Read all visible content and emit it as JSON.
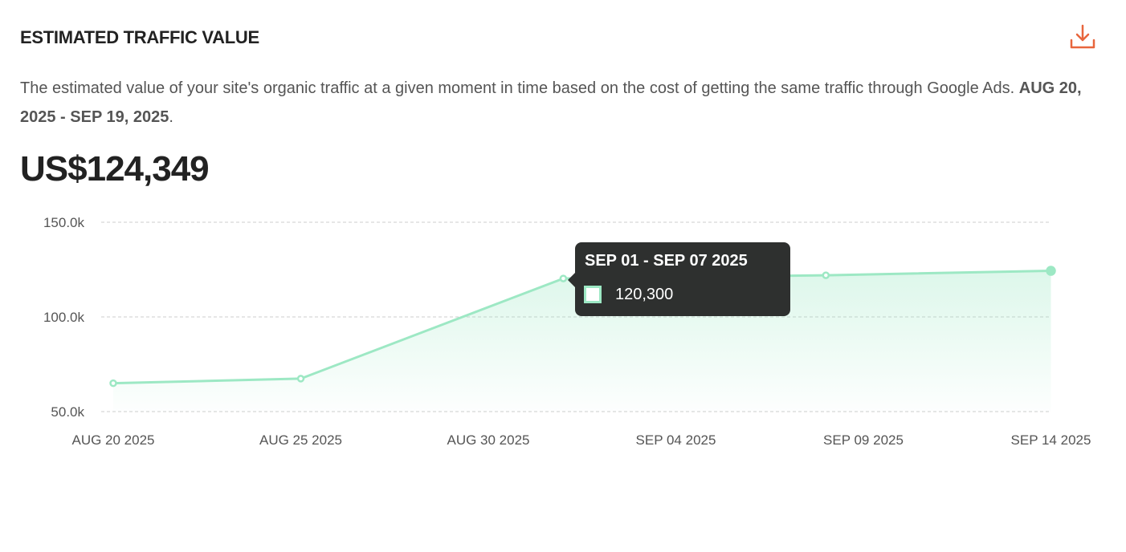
{
  "header": {
    "title": "ESTIMATED TRAFFIC VALUE",
    "download_icon": "download-icon"
  },
  "description": {
    "text": "The estimated value of your site's organic traffic at a given moment in time based on the cost of getting the same traffic through Google Ads. ",
    "range": "AUG 20, 2025 - SEP 19, 2025",
    "end": "."
  },
  "total": "US$124,349",
  "tooltip": {
    "title": "SEP 01 - SEP 07 2025",
    "value": "120,300"
  },
  "chart_data": {
    "type": "area",
    "title": "Estimated Traffic Value",
    "x_day_offsets": [
      0,
      5,
      12,
      19,
      25
    ],
    "x_dates": [
      "2025-08-20",
      "2025-08-25",
      "2025-09-01",
      "2025-09-08",
      "2025-09-14"
    ],
    "values": [
      65000,
      67400,
      120300,
      122000,
      124349
    ],
    "y_ticks": [
      "150.0k",
      "100.0k",
      "50.0k"
    ],
    "y_tick_values": [
      150000,
      100000,
      50000
    ],
    "ylim": [
      50000,
      150000
    ],
    "x_ticks": [
      "AUG 20 2025",
      "AUG 25 2025",
      "AUG 30 2025",
      "SEP 04 2025",
      "SEP 09 2025",
      "SEP 14 2025"
    ],
    "x_tick_offsets": [
      0,
      5,
      10,
      15,
      20,
      25
    ],
    "grid": true,
    "color": "#9de8c4"
  }
}
